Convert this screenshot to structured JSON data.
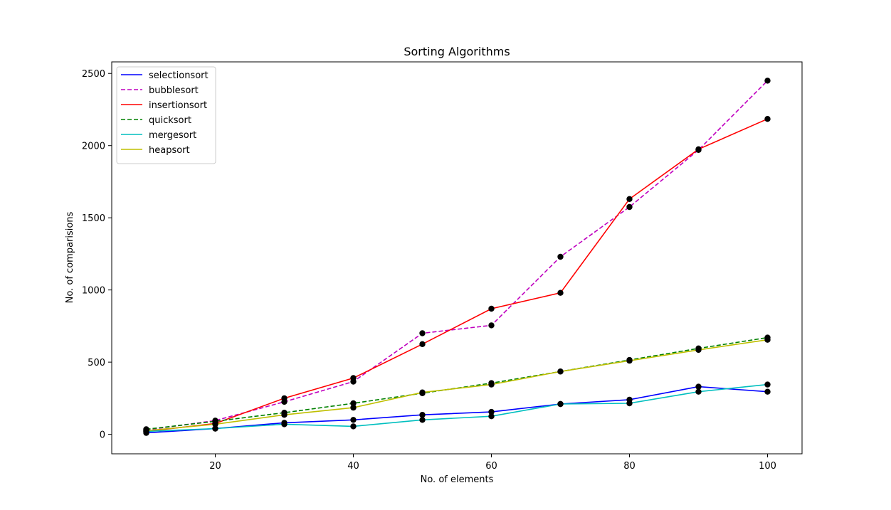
{
  "chart_data": {
    "type": "line",
    "title": "Sorting Algorithms",
    "xlabel": "No. of elements",
    "ylabel": "No. of comparisions",
    "x": [
      10,
      20,
      30,
      40,
      50,
      60,
      70,
      80,
      90,
      100
    ],
    "xlim": [
      5,
      105
    ],
    "ylim": [
      -135,
      2580
    ],
    "xticks": [
      20,
      40,
      60,
      80,
      100
    ],
    "yticks": [
      0,
      500,
      1000,
      1500,
      2000,
      2500
    ],
    "grid": false,
    "legend_position": "top-left",
    "marker_color": "#000000",
    "series": [
      {
        "name": "selectionsort",
        "color": "#0000ff",
        "dash": false,
        "values": [
          10,
          40,
          80,
          100,
          135,
          155,
          210,
          240,
          330,
          295
        ]
      },
      {
        "name": "bubblesort",
        "color": "#bf00bf",
        "dash": true,
        "values": [
          30,
          95,
          225,
          365,
          700,
          755,
          1230,
          1575,
          1970,
          2450
        ]
      },
      {
        "name": "insertionsort",
        "color": "#ff0000",
        "dash": false,
        "values": [
          20,
          75,
          250,
          390,
          625,
          870,
          980,
          1630,
          1975,
          2185
        ]
      },
      {
        "name": "quicksort",
        "color": "#008000",
        "dash": true,
        "values": [
          35,
          90,
          150,
          215,
          285,
          355,
          435,
          515,
          595,
          670
        ]
      },
      {
        "name": "mergesort",
        "color": "#00bfbf",
        "dash": false,
        "values": [
          20,
          40,
          70,
          55,
          100,
          125,
          210,
          215,
          295,
          345
        ]
      },
      {
        "name": "heapsort",
        "color": "#bfbf00",
        "dash": false,
        "values": [
          25,
          70,
          135,
          185,
          290,
          345,
          435,
          510,
          585,
          655
        ]
      }
    ]
  }
}
